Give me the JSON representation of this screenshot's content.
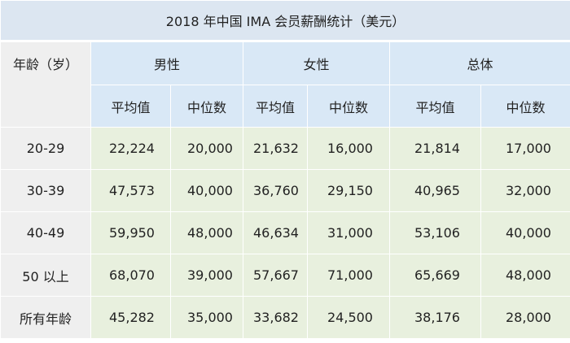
{
  "title": "2018 年中国 IMA 会员薪酬统计（美元）",
  "headers": {
    "age": "年龄（岁）",
    "groups": [
      "男性",
      "女性",
      "总体"
    ],
    "average": "平均值",
    "median": "中位数"
  },
  "rows": [
    {
      "age": "20-29",
      "male_avg": "22,224",
      "male_median": "20,000",
      "female_avg": "21,632",
      "female_median": "16,000",
      "total_avg": "21,814",
      "total_median": "17,000"
    },
    {
      "age": "30-39",
      "male_avg": "47,573",
      "male_median": "40,000",
      "female_avg": "36,760",
      "female_median": "29,150",
      "total_avg": "40,965",
      "total_median": "32,000"
    },
    {
      "age": "40-49",
      "male_avg": "59,950",
      "male_median": "48,000",
      "female_avg": "46,634",
      "female_median": "31,000",
      "total_avg": "53,106",
      "total_median": "40,000"
    },
    {
      "age": "50 以上",
      "male_avg": "68,070",
      "male_median": "39,000",
      "female_avg": "57,667",
      "female_median": "71,000",
      "total_avg": "65,669",
      "total_median": "48,000"
    },
    {
      "age": "所有年龄",
      "male_avg": "45,282",
      "male_median": "35,000",
      "female_avg": "33,682",
      "female_median": "24,500",
      "total_avg": "38,176",
      "total_median": "28,000"
    }
  ],
  "colors": {
    "title_bg": "#dce6f1",
    "header_bg": "#d9e8f6",
    "label_bg": "#efefef",
    "value_bg": "#e8f0de"
  }
}
